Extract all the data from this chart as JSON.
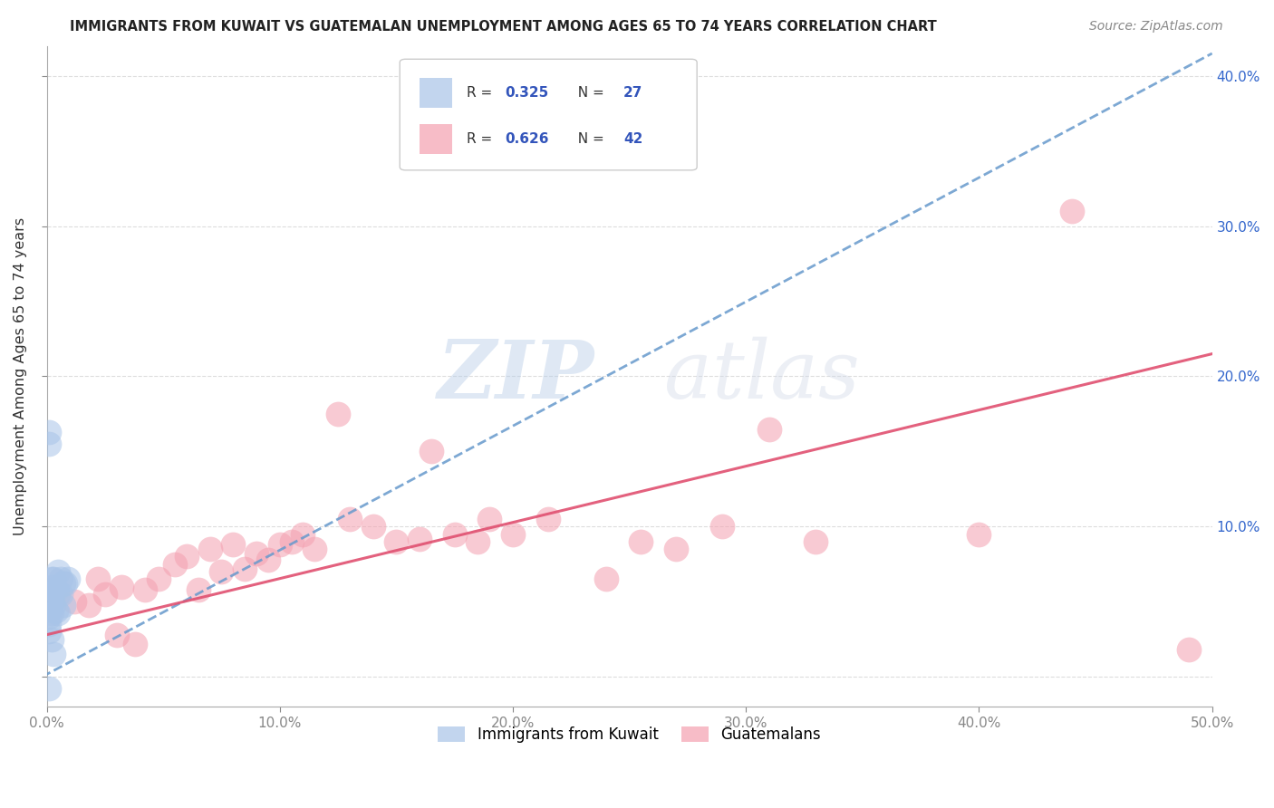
{
  "title": "IMMIGRANTS FROM KUWAIT VS GUATEMALAN UNEMPLOYMENT AMONG AGES 65 TO 74 YEARS CORRELATION CHART",
  "source": "Source: ZipAtlas.com",
  "ylabel": "Unemployment Among Ages 65 to 74 years",
  "xlim": [
    0.0,
    0.5
  ],
  "ylim": [
    -0.02,
    0.42
  ],
  "xticks": [
    0.0,
    0.1,
    0.2,
    0.3,
    0.4,
    0.5
  ],
  "yticks": [
    0.0,
    0.1,
    0.2,
    0.3,
    0.4
  ],
  "xticklabels": [
    "0.0%",
    "10.0%",
    "20.0%",
    "30.0%",
    "40.0%",
    "50.0%"
  ],
  "yticklabels_right": [
    "",
    "10.0%",
    "20.0%",
    "30.0%",
    "40.0%"
  ],
  "legend_label1": "Immigrants from Kuwait",
  "legend_label2": "Guatemalans",
  "color_blue": "#A8C4E8",
  "color_blue_line": "#6699CC",
  "color_pink": "#F4A0B0",
  "color_pink_line": "#E05070",
  "color_r_value": "#3355BB",
  "watermark_zip": "ZIP",
  "watermark_atlas": "atlas",
  "background_color": "#FFFFFF",
  "grid_color": "#DDDDDD",
  "blue_scatter_x": [
    0.001,
    0.001,
    0.001,
    0.001,
    0.001,
    0.002,
    0.002,
    0.002,
    0.002,
    0.003,
    0.003,
    0.003,
    0.004,
    0.004,
    0.005,
    0.005,
    0.005,
    0.006,
    0.006,
    0.007,
    0.007,
    0.008,
    0.009,
    0.001,
    0.002,
    0.003,
    0.001
  ],
  "blue_scatter_y": [
    0.155,
    0.163,
    0.045,
    0.04,
    0.035,
    0.065,
    0.06,
    0.05,
    0.042,
    0.065,
    0.058,
    0.048,
    0.058,
    0.044,
    0.07,
    0.055,
    0.042,
    0.065,
    0.055,
    0.062,
    0.048,
    0.062,
    0.065,
    0.03,
    0.025,
    0.015,
    -0.008
  ],
  "pink_scatter_x": [
    0.012,
    0.018,
    0.022,
    0.025,
    0.03,
    0.032,
    0.038,
    0.042,
    0.048,
    0.055,
    0.06,
    0.065,
    0.07,
    0.075,
    0.08,
    0.085,
    0.09,
    0.095,
    0.1,
    0.105,
    0.11,
    0.115,
    0.125,
    0.13,
    0.14,
    0.15,
    0.16,
    0.165,
    0.175,
    0.185,
    0.19,
    0.2,
    0.215,
    0.24,
    0.255,
    0.27,
    0.29,
    0.31,
    0.33,
    0.4,
    0.44,
    0.49
  ],
  "pink_scatter_y": [
    0.05,
    0.048,
    0.065,
    0.055,
    0.028,
    0.06,
    0.022,
    0.058,
    0.065,
    0.075,
    0.08,
    0.058,
    0.085,
    0.07,
    0.088,
    0.072,
    0.082,
    0.078,
    0.088,
    0.09,
    0.095,
    0.085,
    0.175,
    0.105,
    0.1,
    0.09,
    0.092,
    0.15,
    0.095,
    0.09,
    0.105,
    0.095,
    0.105,
    0.065,
    0.09,
    0.085,
    0.1,
    0.165,
    0.09,
    0.095,
    0.31,
    0.018
  ],
  "blue_line_x": [
    -0.002,
    0.5
  ],
  "blue_line_y": [
    0.0,
    0.415
  ],
  "pink_line_x": [
    0.0,
    0.5
  ],
  "pink_line_y": [
    0.028,
    0.215
  ]
}
